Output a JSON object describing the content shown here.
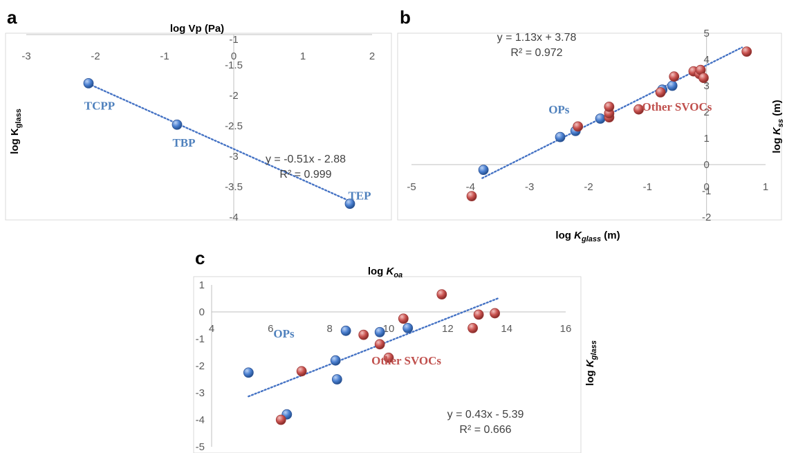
{
  "colors": {
    "ops_blue": "#4472c4",
    "other_red": "#c0504d",
    "label_blue": "#4f81bd",
    "label_red": "#c0504d",
    "trend": "#4472c4"
  },
  "chart_data": [
    {
      "id": "a",
      "type": "scatter",
      "panel_label": "a",
      "title": "log Vp (Pa)",
      "xlabel": "",
      "ylabel": "log K",
      "ylabel_sub": "glass",
      "xlim": [
        -3,
        2
      ],
      "ylim": [
        -4,
        -1
      ],
      "xticks": [
        -3,
        -2,
        -1,
        0,
        1,
        2
      ],
      "yticks": [
        -1.5,
        -2,
        -2.5,
        -3,
        -3.5,
        -4
      ],
      "ytick_top": -1,
      "series": [
        {
          "points": [
            {
              "x": -2.1,
              "y": -1.8
            },
            {
              "x": -0.82,
              "y": -2.48
            },
            {
              "x": 1.68,
              "y": -3.78
            }
          ]
        }
      ],
      "point_labels": [
        {
          "text": "TCPP",
          "x": -2.1,
          "y": -1.8
        },
        {
          "text": "TBP",
          "x": -0.82,
          "y": -2.48
        },
        {
          "text": "TEP",
          "x": 1.68,
          "y": -3.78
        }
      ],
      "trendline": {
        "slope": -0.51,
        "intercept": -2.88,
        "x_range": [
          -2.1,
          1.68
        ]
      },
      "equation": "y = -0.51x - 2.88",
      "r_squared": "R² = 0.999"
    },
    {
      "id": "b",
      "type": "scatter",
      "panel_label": "b",
      "xlabel": "log K",
      "xlabel_sub": "glass",
      "xlabel_unit": " (m)",
      "ylabel": "log K",
      "ylabel_sub": "ss",
      "ylabel_unit": " (m)",
      "xlim": [
        -5,
        1
      ],
      "ylim": [
        -2,
        5
      ],
      "xticks": [
        -5,
        -4,
        -3,
        -2,
        -1,
        0,
        1
      ],
      "yticks": [
        5,
        4,
        3,
        2,
        1,
        0,
        -1,
        -2
      ],
      "series": [
        {
          "name": "OPs",
          "points": [
            {
              "x": -3.78,
              "y": -0.2
            },
            {
              "x": -2.48,
              "y": 1.05
            },
            {
              "x": -2.22,
              "y": 1.28
            },
            {
              "x": -1.8,
              "y": 1.75
            },
            {
              "x": -0.75,
              "y": 2.85
            },
            {
              "x": -0.58,
              "y": 3.0
            }
          ]
        },
        {
          "name": "Other SVOCs",
          "points": [
            {
              "x": -3.98,
              "y": -1.2
            },
            {
              "x": -2.18,
              "y": 1.45
            },
            {
              "x": -1.65,
              "y": 1.8
            },
            {
              "x": -1.65,
              "y": 1.95
            },
            {
              "x": -1.65,
              "y": 2.2
            },
            {
              "x": -1.15,
              "y": 2.1
            },
            {
              "x": -0.78,
              "y": 2.75
            },
            {
              "x": -0.55,
              "y": 3.35
            },
            {
              "x": -0.22,
              "y": 3.55
            },
            {
              "x": -0.12,
              "y": 3.45
            },
            {
              "x": -0.1,
              "y": 3.6
            },
            {
              "x": -0.05,
              "y": 3.3
            },
            {
              "x": 0.68,
              "y": 4.3
            }
          ]
        }
      ],
      "series_labels": [
        {
          "text": "OPs",
          "x": -2.5,
          "y": 1.95
        },
        {
          "text": "Other SVOCs",
          "x": -0.5,
          "y": 2.05
        }
      ],
      "trendline": {
        "slope": 1.13,
        "intercept": 3.78,
        "x_range": [
          -3.8,
          0.6
        ]
      },
      "equation": "y = 1.13x + 3.78",
      "r_squared": "R² = 0.972"
    },
    {
      "id": "c",
      "type": "scatter",
      "panel_label": "c",
      "title": "log K",
      "title_sub": "oa",
      "ylabel": "log K",
      "ylabel_sub": "glass",
      "xlim": [
        4,
        16
      ],
      "ylim": [
        -5,
        1
      ],
      "xticks": [
        4,
        6,
        8,
        10,
        12,
        14,
        16
      ],
      "yticks": [
        1,
        0,
        -1,
        -2,
        -3,
        -4,
        -5
      ],
      "series": [
        {
          "name": "OPs",
          "points": [
            {
              "x": 5.25,
              "y": -2.25
            },
            {
              "x": 6.55,
              "y": -3.8
            },
            {
              "x": 8.2,
              "y": -1.8
            },
            {
              "x": 8.25,
              "y": -2.5
            },
            {
              "x": 8.55,
              "y": -0.7
            },
            {
              "x": 9.7,
              "y": -0.75
            },
            {
              "x": 10.65,
              "y": -0.6
            }
          ]
        },
        {
          "name": "Other SVOCs",
          "points": [
            {
              "x": 6.35,
              "y": -4.0
            },
            {
              "x": 7.05,
              "y": -2.2
            },
            {
              "x": 9.15,
              "y": -0.85
            },
            {
              "x": 9.7,
              "y": -1.2
            },
            {
              "x": 10.0,
              "y": -1.7
            },
            {
              "x": 10.5,
              "y": -0.25
            },
            {
              "x": 11.8,
              "y": 0.65
            },
            {
              "x": 12.85,
              "y": -0.6
            },
            {
              "x": 13.05,
              "y": -0.1
            },
            {
              "x": 13.6,
              "y": -0.05
            }
          ]
        }
      ],
      "series_labels": [
        {
          "text": "OPs",
          "x": 6.45,
          "y": -0.95
        },
        {
          "text": "Other SVOCs",
          "x": 10.6,
          "y": -1.95
        }
      ],
      "trendline": {
        "slope": 0.43,
        "intercept": -5.39,
        "x_range": [
          5.25,
          13.7
        ]
      },
      "equation": "y = 0.43x - 5.39",
      "r_squared": "R² = 0.666"
    }
  ]
}
